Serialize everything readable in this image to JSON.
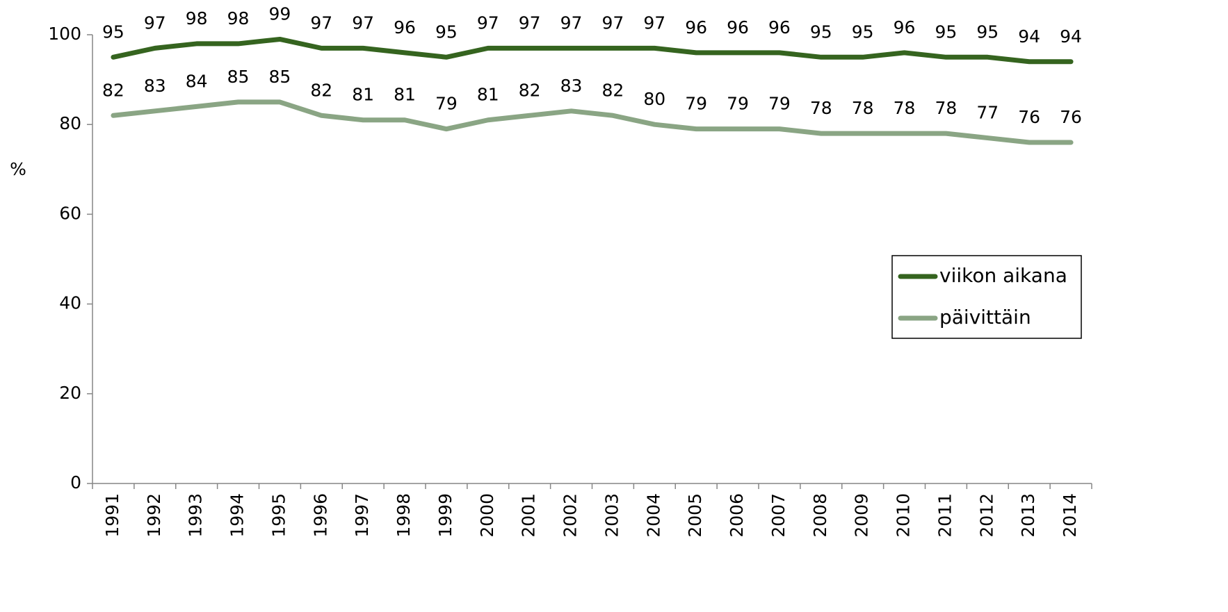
{
  "chart_data": {
    "type": "line",
    "y_label": "%",
    "categories": [
      "1991",
      "1992",
      "1993",
      "1994",
      "1995",
      "1996",
      "1997",
      "1998",
      "1999",
      "2000",
      "2001",
      "2002",
      "2003",
      "2004",
      "2005",
      "2006",
      "2007",
      "2008",
      "2009",
      "2010",
      "2011",
      "2012",
      "2013",
      "2014"
    ],
    "series": [
      {
        "name": "viikon aikana",
        "color": "#35641f",
        "values": [
          95,
          97,
          98,
          98,
          99,
          97,
          97,
          96,
          95,
          97,
          97,
          97,
          97,
          97,
          96,
          96,
          96,
          95,
          95,
          96,
          95,
          95,
          94,
          94
        ]
      },
      {
        "name": "päivittäin",
        "color": "#8aa584",
        "values": [
          82,
          83,
          84,
          85,
          85,
          82,
          81,
          81,
          79,
          81,
          82,
          83,
          82,
          80,
          79,
          79,
          79,
          78,
          78,
          78,
          78,
          77,
          76,
          76
        ]
      }
    ],
    "ylim": [
      0,
      100
    ],
    "yticks": [
      0,
      20,
      40,
      60,
      80,
      100
    ],
    "grid": false,
    "legend": "right"
  }
}
